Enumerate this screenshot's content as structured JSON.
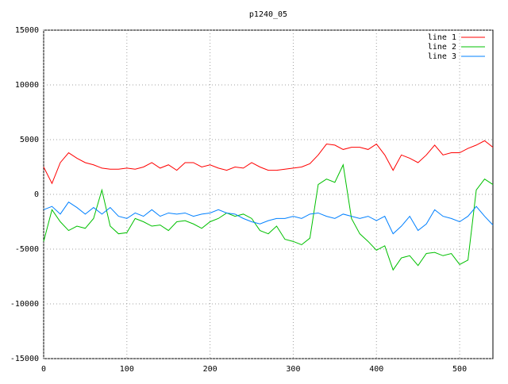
{
  "chart_data": {
    "type": "line",
    "title": "p1240_05",
    "x": [
      0,
      10,
      20,
      30,
      40,
      50,
      60,
      70,
      80,
      90,
      100,
      110,
      120,
      130,
      140,
      150,
      160,
      170,
      180,
      190,
      200,
      210,
      220,
      230,
      240,
      250,
      260,
      270,
      280,
      290,
      300,
      310,
      320,
      330,
      340,
      350,
      360,
      370,
      380,
      390,
      400,
      410,
      420,
      430,
      440,
      450,
      460,
      470,
      480,
      490,
      500,
      510,
      520,
      530,
      540
    ],
    "series": [
      {
        "name": "line 1",
        "color": "#ff0000",
        "values": [
          2500,
          1000,
          2900,
          3800,
          3300,
          2900,
          2700,
          2400,
          2300,
          2300,
          2400,
          2300,
          2500,
          2900,
          2400,
          2700,
          2200,
          2900,
          2900,
          2500,
          2700,
          2400,
          2200,
          2500,
          2400,
          2900,
          2500,
          2200,
          2200,
          2300,
          2400,
          2500,
          2800,
          3600,
          4600,
          4500,
          4100,
          4300,
          4300,
          4100,
          4600,
          3600,
          2200,
          3600,
          3300,
          2900,
          3600,
          4500,
          3600,
          3800,
          3800,
          4200,
          4500,
          4900,
          4300
        ]
      },
      {
        "name": "line 2",
        "color": "#00c000",
        "values": [
          -4300,
          -1400,
          -2500,
          -3300,
          -2900,
          -3100,
          -2200,
          400,
          -2900,
          -3600,
          -3500,
          -2200,
          -2500,
          -2900,
          -2800,
          -3300,
          -2500,
          -2400,
          -2700,
          -3100,
          -2500,
          -2200,
          -1700,
          -2000,
          -1800,
          -2200,
          -3300,
          -3600,
          -2900,
          -4100,
          -4300,
          -4600,
          -4000,
          900,
          1400,
          1100,
          2700,
          -2200,
          -3600,
          -4300,
          -5100,
          -4700,
          -6900,
          -5800,
          -5600,
          -6500,
          -5400,
          -5300,
          -5600,
          -5400,
          -6400,
          -6000,
          400,
          1400,
          900
        ]
      },
      {
        "name": "line 3",
        "color": "#0080ff",
        "values": [
          -1400,
          -1100,
          -1800,
          -700,
          -1200,
          -1800,
          -1200,
          -1800,
          -1200,
          -2000,
          -2200,
          -1700,
          -2000,
          -1400,
          -2000,
          -1700,
          -1800,
          -1700,
          -2000,
          -1800,
          -1700,
          -1400,
          -1700,
          -1800,
          -2200,
          -2500,
          -2700,
          -2400,
          -2200,
          -2200,
          -2000,
          -2200,
          -1800,
          -1700,
          -2000,
          -2200,
          -1800,
          -2000,
          -2200,
          -2000,
          -2400,
          -2000,
          -3600,
          -2900,
          -2000,
          -3300,
          -2700,
          -1400,
          -2000,
          -2200,
          -2500,
          -2000,
          -1100,
          -2000,
          -2800
        ]
      }
    ],
    "xlim": [
      0,
      540
    ],
    "ylim": [
      -15000,
      15000
    ],
    "xticks": [
      0,
      100,
      200,
      300,
      400,
      500
    ],
    "yticks": [
      -15000,
      -10000,
      -5000,
      0,
      5000,
      10000,
      15000
    ],
    "grid": true,
    "legend": "top-right"
  }
}
